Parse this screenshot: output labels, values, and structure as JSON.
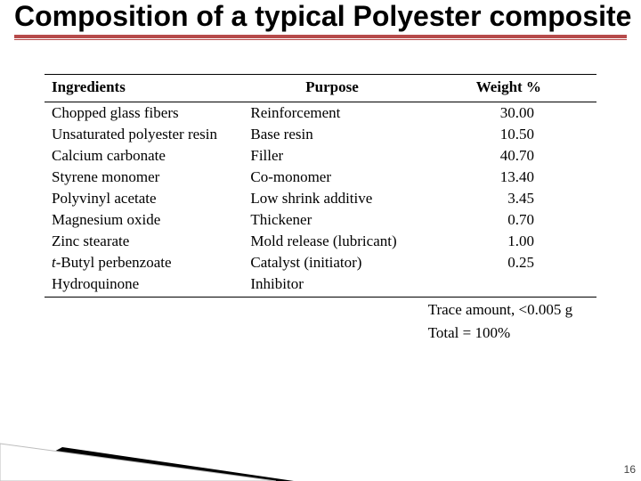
{
  "title": "Composition of a typical Polyester composite",
  "accent_color": "#b64a4a",
  "table": {
    "columns": [
      "Ingredients",
      "Purpose",
      "Weight %"
    ],
    "rows": [
      {
        "ingredient": "Chopped glass fibers",
        "purpose": "Reinforcement",
        "weight": "30.00"
      },
      {
        "ingredient": "Unsaturated polyester resin",
        "purpose": "Base resin",
        "weight": "10.50"
      },
      {
        "ingredient": "Calcium carbonate",
        "purpose": "Filler",
        "weight": "40.70"
      },
      {
        "ingredient": "Styrene monomer",
        "purpose": "Co-monomer",
        "weight": "13.40"
      },
      {
        "ingredient": "Polyvinyl acetate",
        "purpose": "Low shrink additive",
        "weight": "3.45"
      },
      {
        "ingredient": "Magnesium oxide",
        "purpose": "Thickener",
        "weight": "0.70"
      },
      {
        "ingredient": "Zinc stearate",
        "purpose": "Mold release (lubricant)",
        "weight": "1.00"
      },
      {
        "ingredient_prefix": "t",
        "ingredient_rest": "-Butyl perbenzoate",
        "purpose": "Catalyst (initiator)",
        "weight": "0.25"
      },
      {
        "ingredient": "Hydroquinone",
        "purpose": "Inhibitor",
        "weight": ""
      }
    ],
    "footer": [
      "Trace amount, <0.005 g",
      "Total = 100%"
    ]
  },
  "page_number": "16",
  "corner": {
    "poly_black": "0,60 330,60 70,22",
    "poly_white": "0,60 0,18 310,60",
    "stroke": "#bdbdbd"
  }
}
